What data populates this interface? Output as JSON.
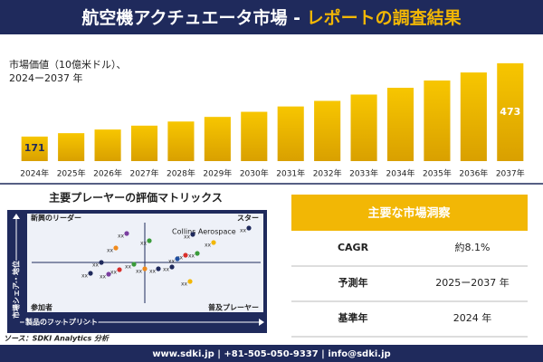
{
  "header": {
    "title": "航空機アクチュエータ市場 - ",
    "highlight": "レポートの調査結果"
  },
  "chart_data": {
    "type": "bar",
    "subtitle": [
      "市場価値（10億米ドル）、",
      "2024ー2037 年"
    ],
    "categories": [
      "2024年",
      "2025年",
      "2026年",
      "2027年",
      "2028年",
      "2029年",
      "2030年",
      "2031年",
      "2032年",
      "2033年",
      "2034年",
      "2035年",
      "2036年",
      "2037年"
    ],
    "values": [
      171,
      185,
      200,
      216,
      233,
      252,
      273,
      295,
      318,
      344,
      372,
      402,
      435,
      473
    ],
    "color": "#f2b705",
    "ylim": [
      70,
      480
    ]
  },
  "matrix": {
    "title": "主要プレーヤーの評価マトリックス",
    "quadrants": [
      "新興のリーダー",
      "スター",
      "参加者",
      "普及プレーヤー"
    ],
    "highlight_player": "Collins Aerospace",
    "x_label": "製品のフットプリント",
    "y_label": "市場シェア・地位",
    "points": [
      {
        "label": "xx",
        "color": "#7b3fa0"
      },
      {
        "label": "xx",
        "color": "#3a9b3a"
      },
      {
        "label": "xx",
        "color": "#1f2a5c"
      },
      {
        "label": "xx",
        "color": "#f08a1c"
      },
      {
        "label": "xx",
        "color": "#1f2a5c"
      },
      {
        "label": "xx",
        "color": "#f2b705"
      },
      {
        "label": "xx",
        "color": "#d9302c"
      },
      {
        "label": "xx",
        "color": "#3a9b3a"
      },
      {
        "label": "xx",
        "color": "#1f4fa0"
      },
      {
        "label": "xx",
        "color": "#1f2a5c"
      },
      {
        "label": "xx",
        "color": "#3a9b3a"
      },
      {
        "label": "xx",
        "color": "#f08a1c"
      },
      {
        "label": "xx",
        "color": "#1f2a5c"
      },
      {
        "label": "xx",
        "color": "#1f2a5c"
      },
      {
        "label": "xx",
        "color": "#1f2a5c"
      },
      {
        "label": "xx",
        "color": "#d9302c"
      },
      {
        "label": "xx",
        "color": "#7b3fa0"
      },
      {
        "label": "xx",
        "color": "#f2b705"
      }
    ]
  },
  "source": "ソース：SDKI Analytics 分析",
  "table": {
    "title": "主要な市場洞察",
    "rows": [
      [
        "CAGR",
        "約8.1%"
      ],
      [
        "予測年",
        "2025ー2037 年"
      ],
      [
        "基準年",
        "2024 年"
      ]
    ]
  },
  "footer": "www.sdki.jp | +81-505-050-9337 | info@sdki.jp"
}
